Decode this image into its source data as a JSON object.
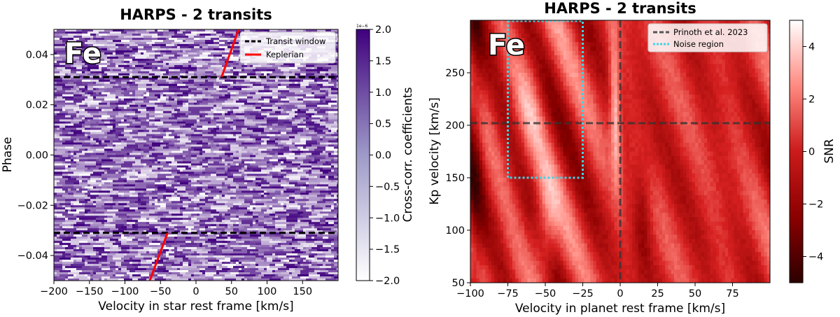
{
  "chart_data": [
    {
      "type": "heatmap",
      "title": "HARPS - 2 transits",
      "label": "Fe",
      "xlabel": "Velocity in star rest frame [km/s]",
      "ylabel": "Phase",
      "xlim": [
        -200,
        200
      ],
      "ylim": [
        -0.05,
        0.05
      ],
      "xticks": [
        -200,
        -150,
        -100,
        -50,
        0,
        50,
        100,
        150
      ],
      "xtick_labels": [
        "−200",
        "−150",
        "−100",
        "−50",
        "0",
        "50",
        "100",
        "150"
      ],
      "yticks": [
        -0.04,
        -0.02,
        0.0,
        0.02,
        0.04
      ],
      "ytick_labels": [
        "−0.04",
        "−0.02",
        "0.00",
        "0.02",
        "0.04"
      ],
      "colorbar": {
        "label": "Cross-corr. coefficients",
        "min": -2.0,
        "max": 2.0,
        "exponent_label": "1e−6",
        "ticks": [
          -2.0,
          -1.5,
          -1.0,
          -0.5,
          0.0,
          0.5,
          1.0,
          1.5,
          2.0
        ],
        "tick_labels": [
          "−2.0",
          "−1.5",
          "−1.0",
          "−0.5",
          "0.0",
          "0.5",
          "1.0",
          "1.5",
          "2.0"
        ],
        "colors": [
          "#ffffff",
          "#3f007d"
        ]
      },
      "transit_window": [
        -0.031,
        0.031
      ],
      "keplerian_segments": [
        {
          "x": [
            -65,
            -40
          ],
          "y": [
            -0.05,
            -0.031
          ]
        },
        {
          "x": [
            36,
            60
          ],
          "y": [
            0.031,
            0.05
          ]
        }
      ],
      "legend": {
        "position": "upper right",
        "entries": [
          {
            "label": "Transit window",
            "color": "#000000",
            "style": "dashed"
          },
          {
            "label": "Keplerian",
            "color": "#ff0000",
            "style": "solid"
          }
        ]
      }
    },
    {
      "type": "heatmap",
      "title": "HARPS - 2 transits",
      "label": "Fe",
      "xlabel": "Velocity in planet rest frame [km/s]",
      "ylabel": "Kp velocity [km/s]",
      "xlim": [
        -100,
        100
      ],
      "ylim": [
        50,
        300
      ],
      "xticks": [
        -100,
        -75,
        -50,
        -25,
        0,
        25,
        50,
        75
      ],
      "xtick_labels": [
        "−100",
        "−75",
        "−50",
        "−25",
        "0",
        "25",
        "50",
        "75"
      ],
      "yticks": [
        50,
        100,
        150,
        200,
        250
      ],
      "ytick_labels": [
        "50",
        "100",
        "150",
        "200",
        "250"
      ],
      "colorbar": {
        "label": "SNR",
        "min": -5,
        "max": 5,
        "ticks": [
          -4,
          -2,
          0,
          2,
          4
        ],
        "tick_labels": [
          "−4",
          "−2",
          "0",
          "2",
          "4"
        ],
        "colors": [
          "#2d0000",
          "#8b0000",
          "#d62020",
          "#ff8a80",
          "#ffffff"
        ]
      },
      "reference_point": {
        "x": 0,
        "y": 202
      },
      "noise_region": {
        "x": [
          -75,
          -25
        ],
        "y": [
          150,
          300
        ]
      },
      "legend": {
        "position": "upper right",
        "entries": [
          {
            "label": "Prinoth et al. 2023",
            "color": "#555555",
            "style": "dashed"
          },
          {
            "label": "Noise region",
            "color": "#3fd3e6",
            "style": "dotted"
          }
        ]
      }
    }
  ]
}
